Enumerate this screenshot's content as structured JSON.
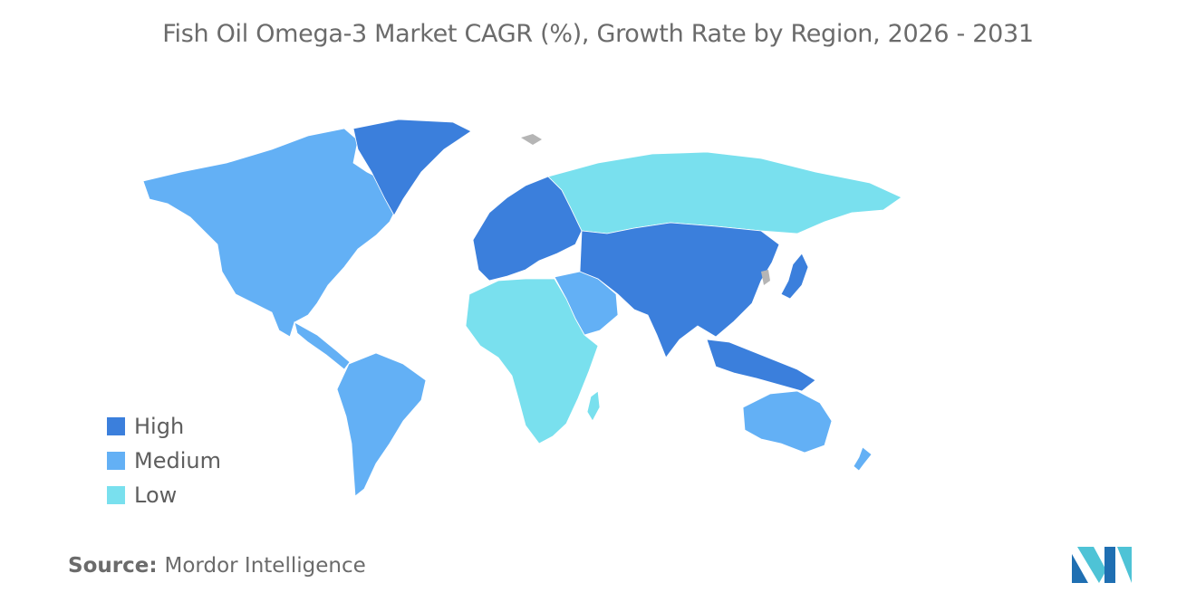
{
  "title": "Fish Oil Omega-3 Market CAGR (%), Growth Rate by Region, 2026 - 2031",
  "legend": [
    {
      "label": "High",
      "color": "#3b7fdc"
    },
    {
      "label": "Medium",
      "color": "#63b0f5"
    },
    {
      "label": "Low",
      "color": "#79e0ee"
    }
  ],
  "no_data_color": "#b5b5b5",
  "regions": {
    "north_america": "Medium",
    "greenland": "High",
    "south_america": "Medium",
    "europe": "High",
    "russia": "Low",
    "africa": "Low",
    "middle_east": "Medium",
    "asia": "High",
    "southeast_asia": "High",
    "japan": "High",
    "australia": "Medium",
    "new_zealand": "Medium"
  },
  "source": {
    "label": "Source:",
    "value": "Mordor Intelligence"
  },
  "logo_icon": "mordor-intelligence-logo-icon"
}
